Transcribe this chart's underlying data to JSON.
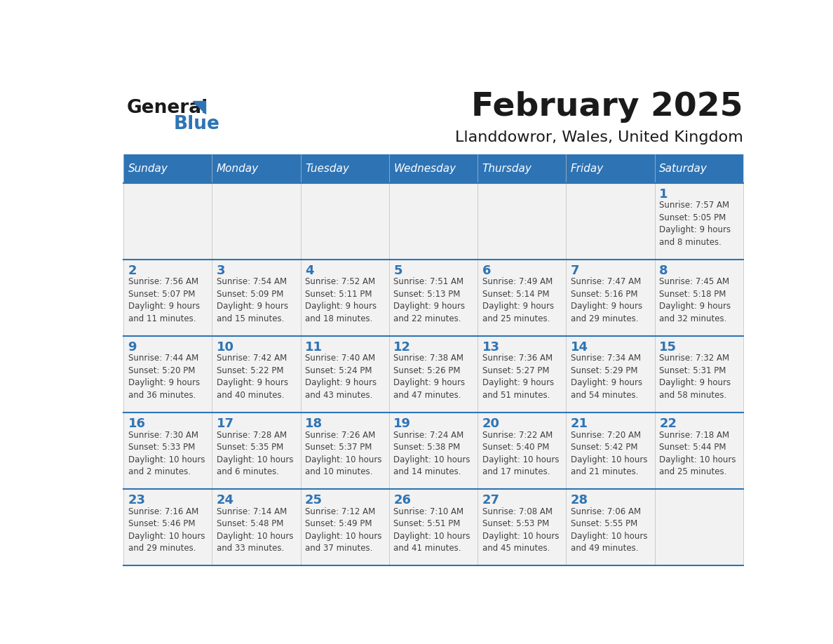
{
  "title": "February 2025",
  "subtitle": "Llanddowror, Wales, United Kingdom",
  "header_bg": "#2E74B5",
  "header_text_color": "#FFFFFF",
  "day_names": [
    "Sunday",
    "Monday",
    "Tuesday",
    "Wednesday",
    "Thursday",
    "Friday",
    "Saturday"
  ],
  "cell_bg_light": "#F2F2F2",
  "cell_bg_white": "#FFFFFF",
  "divider_color": "#2E74B5",
  "text_color": "#404040",
  "day_num_color": "#2E74B5",
  "logo_general_color": "#1A1A1A",
  "logo_blue_color": "#2E74B5",
  "weeks": [
    [
      {
        "day": null,
        "info": null
      },
      {
        "day": null,
        "info": null
      },
      {
        "day": null,
        "info": null
      },
      {
        "day": null,
        "info": null
      },
      {
        "day": null,
        "info": null
      },
      {
        "day": null,
        "info": null
      },
      {
        "day": 1,
        "info": "Sunrise: 7:57 AM\nSunset: 5:05 PM\nDaylight: 9 hours\nand 8 minutes."
      }
    ],
    [
      {
        "day": 2,
        "info": "Sunrise: 7:56 AM\nSunset: 5:07 PM\nDaylight: 9 hours\nand 11 minutes."
      },
      {
        "day": 3,
        "info": "Sunrise: 7:54 AM\nSunset: 5:09 PM\nDaylight: 9 hours\nand 15 minutes."
      },
      {
        "day": 4,
        "info": "Sunrise: 7:52 AM\nSunset: 5:11 PM\nDaylight: 9 hours\nand 18 minutes."
      },
      {
        "day": 5,
        "info": "Sunrise: 7:51 AM\nSunset: 5:13 PM\nDaylight: 9 hours\nand 22 minutes."
      },
      {
        "day": 6,
        "info": "Sunrise: 7:49 AM\nSunset: 5:14 PM\nDaylight: 9 hours\nand 25 minutes."
      },
      {
        "day": 7,
        "info": "Sunrise: 7:47 AM\nSunset: 5:16 PM\nDaylight: 9 hours\nand 29 minutes."
      },
      {
        "day": 8,
        "info": "Sunrise: 7:45 AM\nSunset: 5:18 PM\nDaylight: 9 hours\nand 32 minutes."
      }
    ],
    [
      {
        "day": 9,
        "info": "Sunrise: 7:44 AM\nSunset: 5:20 PM\nDaylight: 9 hours\nand 36 minutes."
      },
      {
        "day": 10,
        "info": "Sunrise: 7:42 AM\nSunset: 5:22 PM\nDaylight: 9 hours\nand 40 minutes."
      },
      {
        "day": 11,
        "info": "Sunrise: 7:40 AM\nSunset: 5:24 PM\nDaylight: 9 hours\nand 43 minutes."
      },
      {
        "day": 12,
        "info": "Sunrise: 7:38 AM\nSunset: 5:26 PM\nDaylight: 9 hours\nand 47 minutes."
      },
      {
        "day": 13,
        "info": "Sunrise: 7:36 AM\nSunset: 5:27 PM\nDaylight: 9 hours\nand 51 minutes."
      },
      {
        "day": 14,
        "info": "Sunrise: 7:34 AM\nSunset: 5:29 PM\nDaylight: 9 hours\nand 54 minutes."
      },
      {
        "day": 15,
        "info": "Sunrise: 7:32 AM\nSunset: 5:31 PM\nDaylight: 9 hours\nand 58 minutes."
      }
    ],
    [
      {
        "day": 16,
        "info": "Sunrise: 7:30 AM\nSunset: 5:33 PM\nDaylight: 10 hours\nand 2 minutes."
      },
      {
        "day": 17,
        "info": "Sunrise: 7:28 AM\nSunset: 5:35 PM\nDaylight: 10 hours\nand 6 minutes."
      },
      {
        "day": 18,
        "info": "Sunrise: 7:26 AM\nSunset: 5:37 PM\nDaylight: 10 hours\nand 10 minutes."
      },
      {
        "day": 19,
        "info": "Sunrise: 7:24 AM\nSunset: 5:38 PM\nDaylight: 10 hours\nand 14 minutes."
      },
      {
        "day": 20,
        "info": "Sunrise: 7:22 AM\nSunset: 5:40 PM\nDaylight: 10 hours\nand 17 minutes."
      },
      {
        "day": 21,
        "info": "Sunrise: 7:20 AM\nSunset: 5:42 PM\nDaylight: 10 hours\nand 21 minutes."
      },
      {
        "day": 22,
        "info": "Sunrise: 7:18 AM\nSunset: 5:44 PM\nDaylight: 10 hours\nand 25 minutes."
      }
    ],
    [
      {
        "day": 23,
        "info": "Sunrise: 7:16 AM\nSunset: 5:46 PM\nDaylight: 10 hours\nand 29 minutes."
      },
      {
        "day": 24,
        "info": "Sunrise: 7:14 AM\nSunset: 5:48 PM\nDaylight: 10 hours\nand 33 minutes."
      },
      {
        "day": 25,
        "info": "Sunrise: 7:12 AM\nSunset: 5:49 PM\nDaylight: 10 hours\nand 37 minutes."
      },
      {
        "day": 26,
        "info": "Sunrise: 7:10 AM\nSunset: 5:51 PM\nDaylight: 10 hours\nand 41 minutes."
      },
      {
        "day": 27,
        "info": "Sunrise: 7:08 AM\nSunset: 5:53 PM\nDaylight: 10 hours\nand 45 minutes."
      },
      {
        "day": 28,
        "info": "Sunrise: 7:06 AM\nSunset: 5:55 PM\nDaylight: 10 hours\nand 49 minutes."
      },
      {
        "day": null,
        "info": null
      }
    ]
  ]
}
